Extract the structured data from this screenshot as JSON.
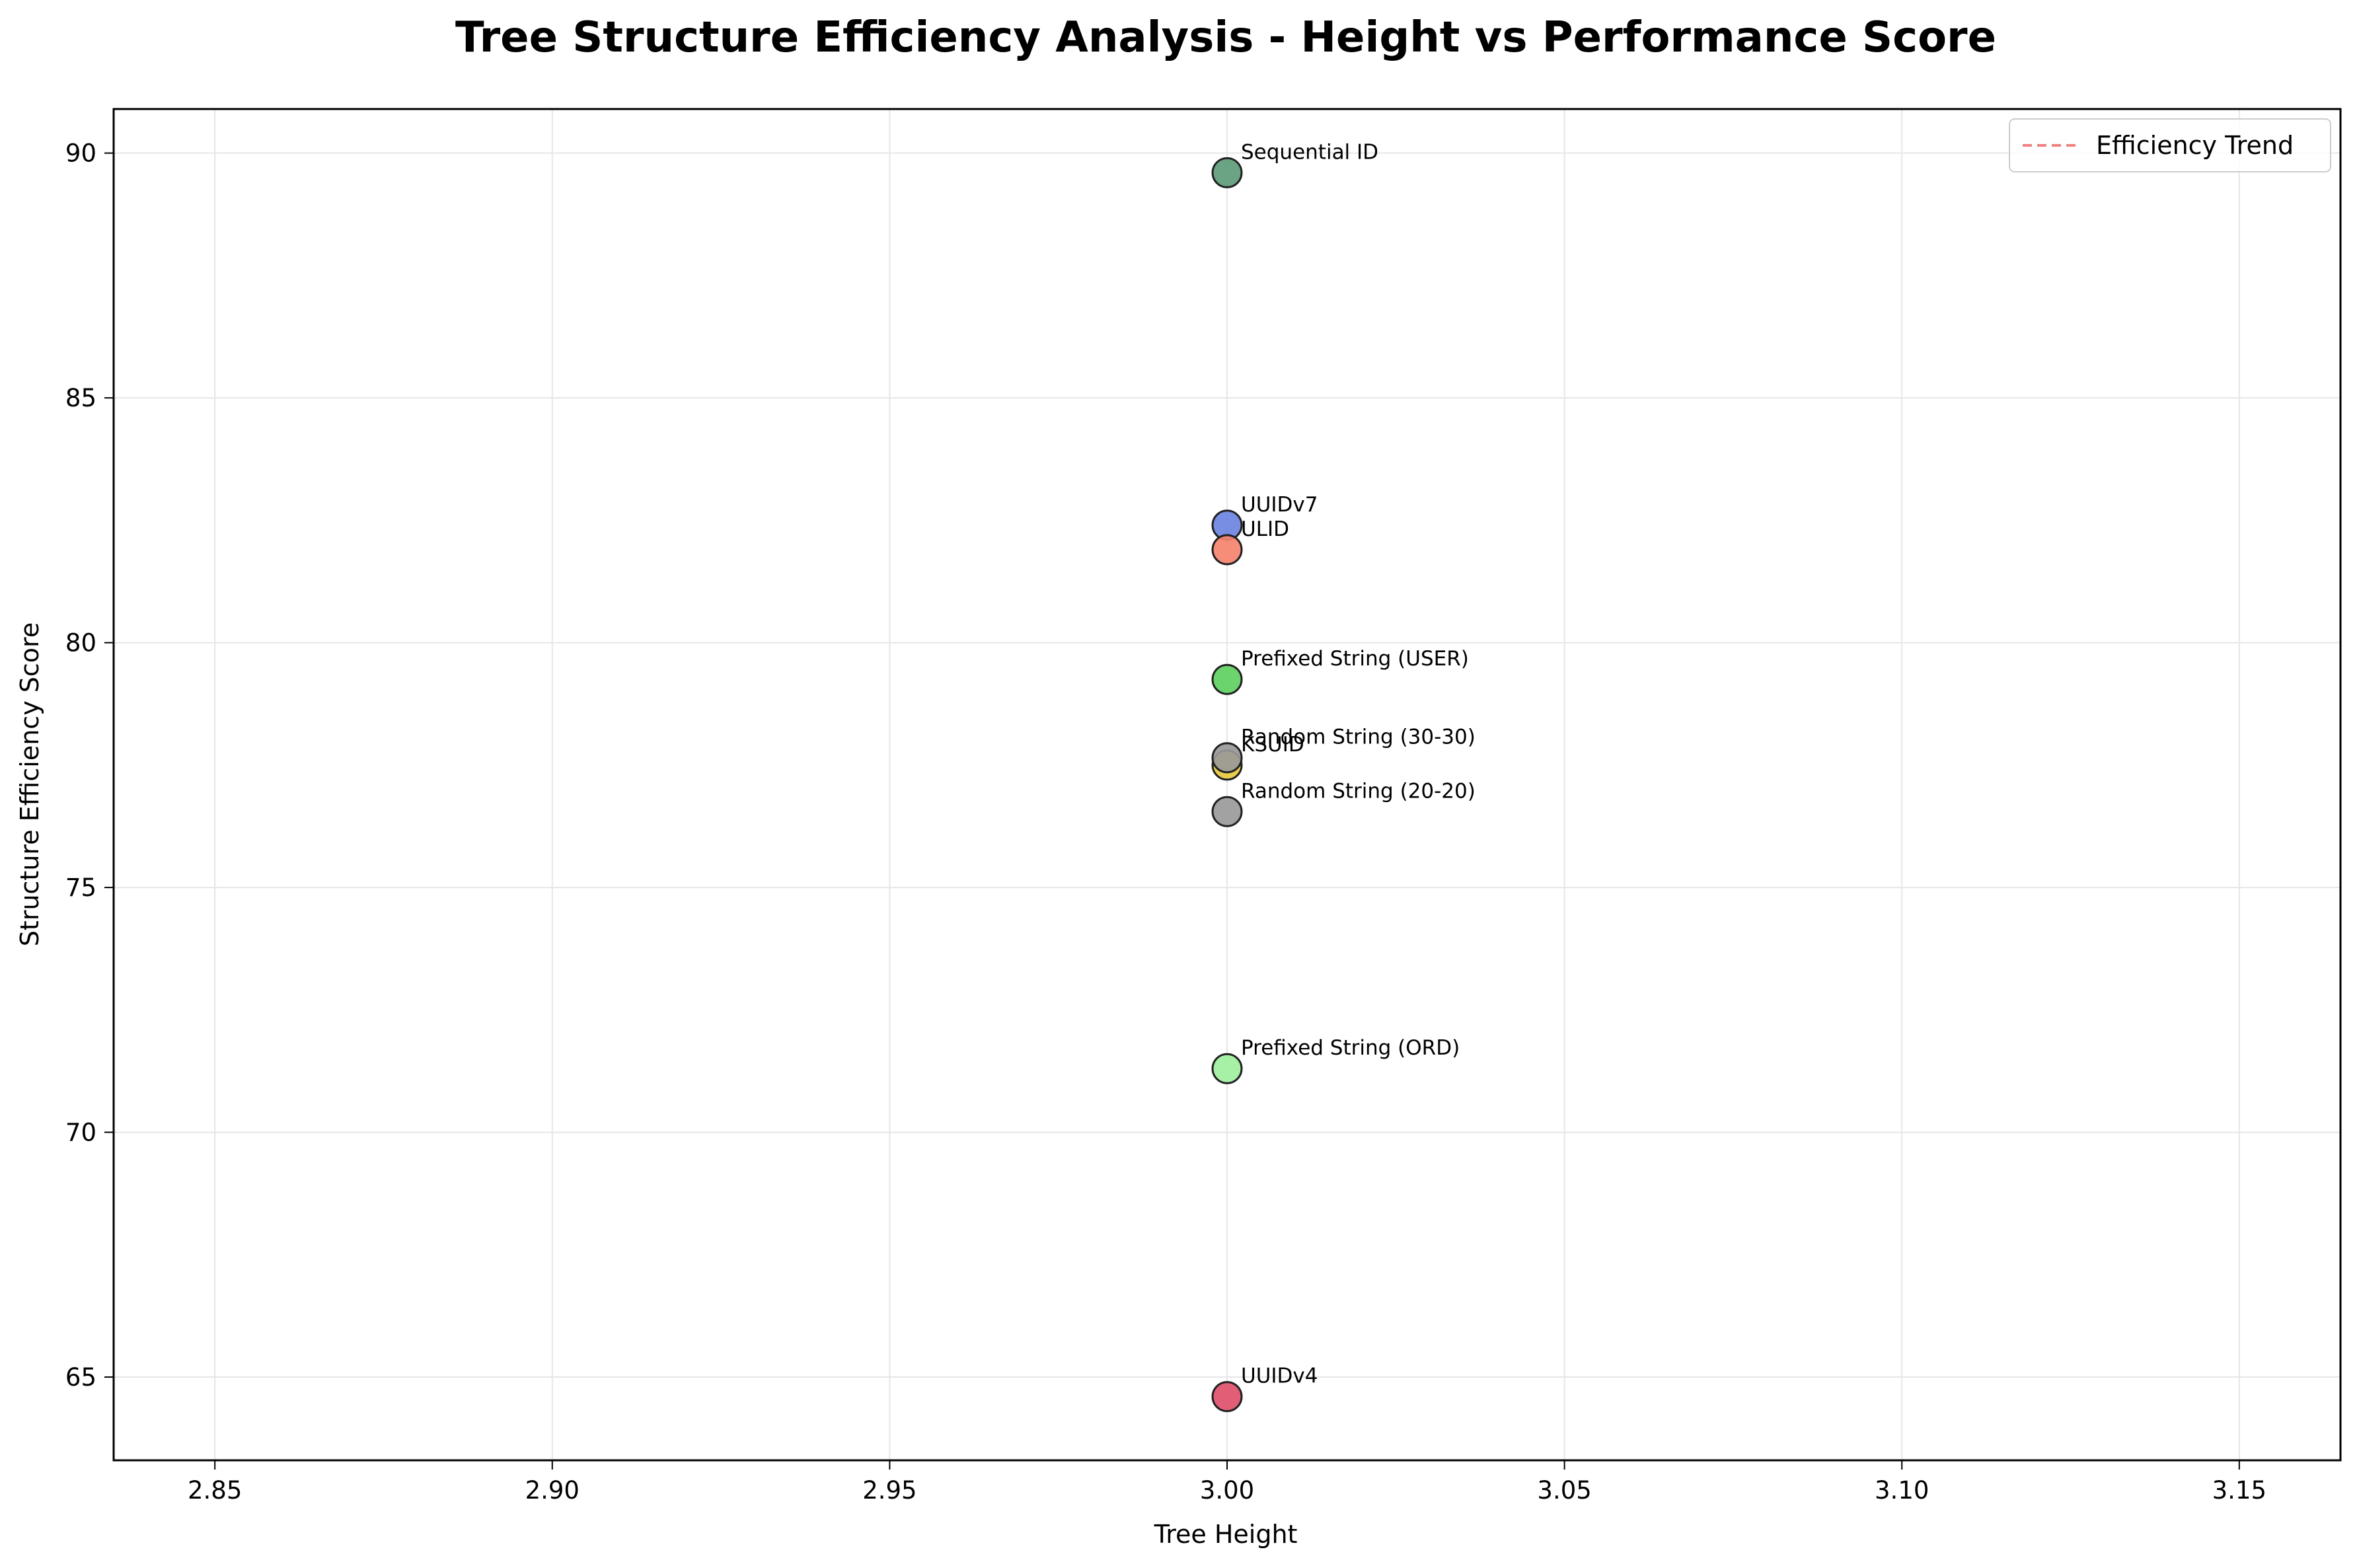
{
  "chart_data": {
    "type": "scatter",
    "title": "Tree Structure Efficiency Analysis - Height vs Performance Score",
    "xlabel": "Tree Height",
    "ylabel": "Structure Efficiency Score",
    "xlim": [
      2.835,
      3.165
    ],
    "ylim": [
      63.3,
      90.9
    ],
    "xticks": [
      2.85,
      2.9,
      2.95,
      3.0,
      3.05,
      3.1,
      3.15
    ],
    "xtick_labels": [
      "2.85",
      "2.90",
      "2.95",
      "3.00",
      "3.05",
      "3.10",
      "3.15"
    ],
    "yticks": [
      65,
      70,
      75,
      80,
      85,
      90
    ],
    "ytick_labels": [
      "65",
      "70",
      "75",
      "80",
      "85",
      "90"
    ],
    "grid": true,
    "legend": {
      "placement": "top-right",
      "entries": [
        {
          "label": "Efficiency Trend",
          "style": "dashed",
          "color": "#f08080"
        }
      ]
    },
    "points": [
      {
        "label": "Sequential ID",
        "x": 3.0,
        "y": 89.6,
        "color": "#5e9c7a"
      },
      {
        "label": "UUIDv7",
        "x": 3.0,
        "y": 82.4,
        "color": "#6b84e0"
      },
      {
        "label": "ULID",
        "x": 3.0,
        "y": 81.9,
        "color": "#f4836d"
      },
      {
        "label": "Prefixed String (USER)",
        "x": 3.0,
        "y": 79.25,
        "color": "#60d060"
      },
      {
        "label": "KSUID",
        "x": 3.0,
        "y": 77.5,
        "color": "#e8c840"
      },
      {
        "label": "Random String (30-30)",
        "x": 3.0,
        "y": 77.65,
        "color": "#999999"
      },
      {
        "label": "Random String (20-20)",
        "x": 3.0,
        "y": 76.55,
        "color": "#9a9a9a"
      },
      {
        "label": "Prefixed String (ORD)",
        "x": 3.0,
        "y": 71.3,
        "color": "#9ef09e"
      },
      {
        "label": "UUIDv4",
        "x": 3.0,
        "y": 64.6,
        "color": "#e0506a"
      }
    ]
  }
}
